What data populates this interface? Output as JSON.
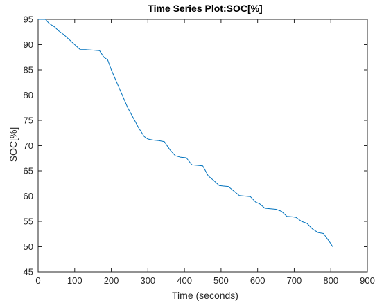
{
  "chart_data": {
    "type": "line",
    "title": "Time Series Plot:SOC[%]",
    "xlabel": "Time (seconds)",
    "ylabel": "SOC[%]",
    "xlim": [
      0,
      900
    ],
    "ylim": [
      45,
      95
    ],
    "xticks": [
      0,
      100,
      200,
      300,
      400,
      500,
      600,
      700,
      800,
      900
    ],
    "yticks": [
      45,
      50,
      55,
      60,
      65,
      70,
      75,
      80,
      85,
      90,
      95
    ],
    "grid": false,
    "line_color": "#0072BD",
    "series": [
      {
        "x": [
          0,
          20,
          30,
          45,
          55,
          70,
          85,
          100,
          115,
          130,
          150,
          168,
          180,
          190,
          200,
          215,
          230,
          245,
          260,
          275,
          290,
          300,
          315,
          330,
          345,
          360,
          375,
          390,
          405,
          420,
          435,
          450,
          465,
          480,
          495,
          505,
          520,
          535,
          550,
          565,
          580,
          595,
          605,
          620,
          635,
          650,
          665,
          680,
          695,
          705,
          720,
          735,
          750,
          765,
          780,
          800,
          805
        ],
        "y": [
          95.0,
          95.0,
          94.2,
          93.5,
          92.8,
          92.0,
          91.0,
          90.0,
          89.0,
          89.0,
          88.9,
          88.8,
          87.5,
          87.0,
          85.0,
          82.5,
          80.0,
          77.5,
          75.5,
          73.5,
          71.8,
          71.3,
          71.1,
          71.0,
          70.8,
          69.2,
          68.0,
          67.7,
          67.6,
          66.2,
          66.1,
          66.0,
          64.0,
          63.1,
          62.1,
          62.0,
          61.9,
          61.0,
          60.1,
          60.0,
          59.9,
          58.8,
          58.5,
          57.6,
          57.5,
          57.4,
          57.0,
          56.0,
          55.9,
          55.8,
          55.0,
          54.6,
          53.5,
          52.8,
          52.6,
          50.6,
          50.0
        ]
      }
    ]
  }
}
